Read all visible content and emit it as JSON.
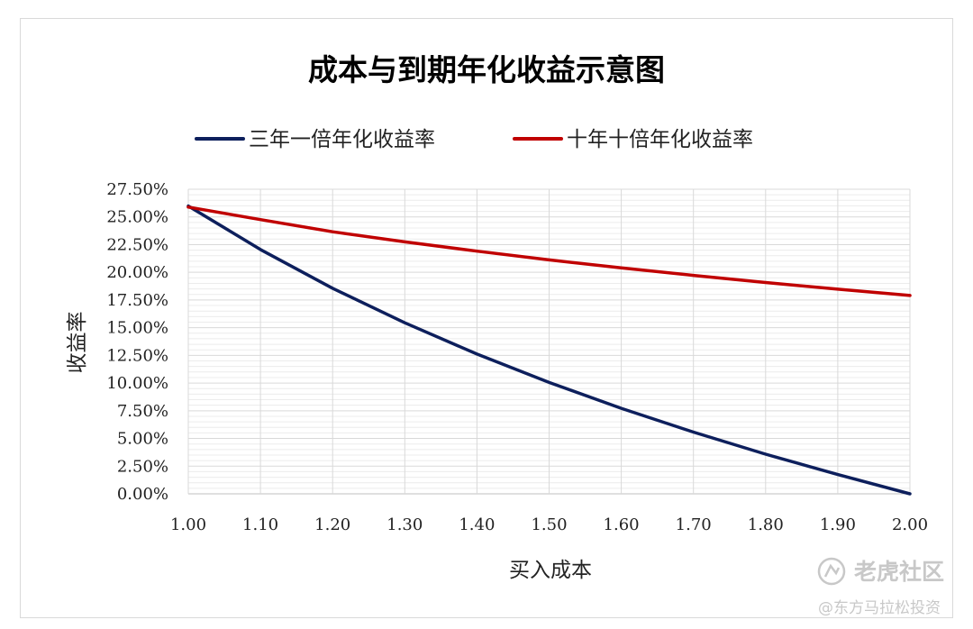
{
  "chart_data": {
    "type": "line",
    "title": "成本与到期年化收益示意图",
    "xlabel": "买入成本",
    "ylabel": "收益率",
    "x": [
      1.0,
      1.1,
      1.2,
      1.3,
      1.4,
      1.5,
      1.6,
      1.7,
      1.8,
      1.9,
      2.0
    ],
    "x_tick_labels": [
      "1.00",
      "1.10",
      "1.20",
      "1.30",
      "1.40",
      "1.50",
      "1.60",
      "1.70",
      "1.80",
      "1.90",
      "2.00"
    ],
    "xlim": [
      1.0,
      2.0
    ],
    "ylim": [
      0,
      0.275
    ],
    "y_ticks": [
      0,
      0.025,
      0.05,
      0.075,
      0.1,
      0.125,
      0.15,
      0.175,
      0.2,
      0.225,
      0.25,
      0.275
    ],
    "y_tick_labels": [
      "0.00%",
      "2.50%",
      "5.00%",
      "7.50%",
      "10.00%",
      "12.50%",
      "15.00%",
      "17.50%",
      "20.00%",
      "22.50%",
      "25.00%",
      "27.50%"
    ],
    "grid": true,
    "legend_position": "top",
    "series": [
      {
        "name": "三年一倍年化收益率",
        "color": "#0d1f5c",
        "values": [
          0.2599,
          0.2206,
          0.1856,
          0.1544,
          0.1262,
          0.1006,
          0.0772,
          0.0557,
          0.0358,
          0.0174,
          0.0
        ]
      },
      {
        "name": "十年十倍年化收益率",
        "color": "#c00000",
        "values": [
          0.2589,
          0.2476,
          0.2366,
          0.2275,
          0.2191,
          0.2112,
          0.204,
          0.1972,
          0.1908,
          0.1848,
          0.1791
        ]
      }
    ]
  },
  "watermark": {
    "brand": "老虎社区",
    "handle": "@东方马拉松投资"
  }
}
